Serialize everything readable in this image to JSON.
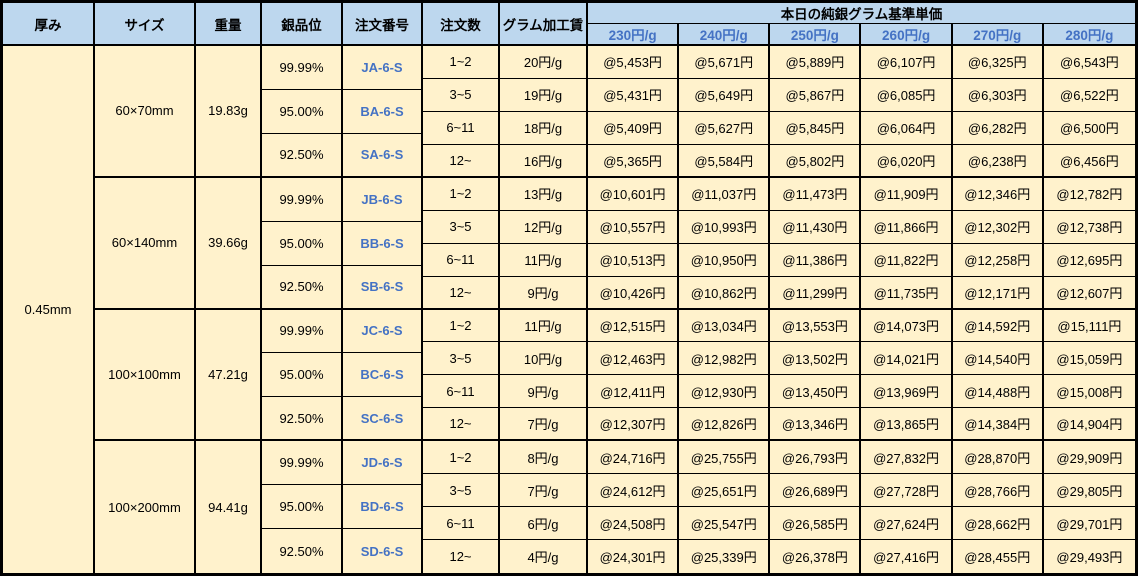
{
  "colors": {
    "header_bg": "#BDD7EE",
    "body_bg": "#FFF2CC",
    "accent_blue": "#4472C4",
    "border": "#000000"
  },
  "table": {
    "headers": {
      "thickness": "厚み",
      "size": "サイズ",
      "weight": "重量",
      "purity": "銀品位",
      "order_no": "注文番号",
      "order_qty": "注文数",
      "fee": "グラム加工賃",
      "price_group": "本日の純銀グラム基準単価"
    },
    "price_columns": [
      "230円/g",
      "240円/g",
      "250円/g",
      "260円/g",
      "270円/g",
      "280円/g"
    ],
    "thickness_value": "0.45mm",
    "groups": [
      {
        "size": "60×70mm",
        "weight": "19.83g",
        "purities": [
          {
            "purity": "99.99%",
            "order_no": "JA-6-S"
          },
          {
            "purity": "95.00%",
            "order_no": "BA-6-S"
          },
          {
            "purity": "92.50%",
            "order_no": "SA-6-S"
          }
        ],
        "rows": [
          {
            "qty": "1~2",
            "fee": "20円/g",
            "prices": [
              "@5,453円",
              "@5,671円",
              "@5,889円",
              "@6,107円",
              "@6,325円",
              "@6,543円"
            ]
          },
          {
            "qty": "3~5",
            "fee": "19円/g",
            "prices": [
              "@5,431円",
              "@5,649円",
              "@5,867円",
              "@6,085円",
              "@6,303円",
              "@6,522円"
            ]
          },
          {
            "qty": "6~11",
            "fee": "18円/g",
            "prices": [
              "@5,409円",
              "@5,627円",
              "@5,845円",
              "@6,064円",
              "@6,282円",
              "@6,500円"
            ]
          },
          {
            "qty": "12~",
            "fee": "16円/g",
            "prices": [
              "@5,365円",
              "@5,584円",
              "@5,802円",
              "@6,020円",
              "@6,238円",
              "@6,456円"
            ]
          }
        ]
      },
      {
        "size": "60×140mm",
        "weight": "39.66g",
        "purities": [
          {
            "purity": "99.99%",
            "order_no": "JB-6-S"
          },
          {
            "purity": "95.00%",
            "order_no": "BB-6-S"
          },
          {
            "purity": "92.50%",
            "order_no": "SB-6-S"
          }
        ],
        "rows": [
          {
            "qty": "1~2",
            "fee": "13円/g",
            "prices": [
              "@10,601円",
              "@11,037円",
              "@11,473円",
              "@11,909円",
              "@12,346円",
              "@12,782円"
            ]
          },
          {
            "qty": "3~5",
            "fee": "12円/g",
            "prices": [
              "@10,557円",
              "@10,993円",
              "@11,430円",
              "@11,866円",
              "@12,302円",
              "@12,738円"
            ]
          },
          {
            "qty": "6~11",
            "fee": "11円/g",
            "prices": [
              "@10,513円",
              "@10,950円",
              "@11,386円",
              "@11,822円",
              "@12,258円",
              "@12,695円"
            ]
          },
          {
            "qty": "12~",
            "fee": "9円/g",
            "prices": [
              "@10,426円",
              "@10,862円",
              "@11,299円",
              "@11,735円",
              "@12,171円",
              "@12,607円"
            ]
          }
        ]
      },
      {
        "size": "100×100mm",
        "weight": "47.21g",
        "purities": [
          {
            "purity": "99.99%",
            "order_no": "JC-6-S"
          },
          {
            "purity": "95.00%",
            "order_no": "BC-6-S"
          },
          {
            "purity": "92.50%",
            "order_no": "SC-6-S"
          }
        ],
        "rows": [
          {
            "qty": "1~2",
            "fee": "11円/g",
            "prices": [
              "@12,515円",
              "@13,034円",
              "@13,553円",
              "@14,073円",
              "@14,592円",
              "@15,111円"
            ]
          },
          {
            "qty": "3~5",
            "fee": "10円/g",
            "prices": [
              "@12,463円",
              "@12,982円",
              "@13,502円",
              "@14,021円",
              "@14,540円",
              "@15,059円"
            ]
          },
          {
            "qty": "6~11",
            "fee": "9円/g",
            "prices": [
              "@12,411円",
              "@12,930円",
              "@13,450円",
              "@13,969円",
              "@14,488円",
              "@15,008円"
            ]
          },
          {
            "qty": "12~",
            "fee": "7円/g",
            "prices": [
              "@12,307円",
              "@12,826円",
              "@13,346円",
              "@13,865円",
              "@14,384円",
              "@14,904円"
            ]
          }
        ]
      },
      {
        "size": "100×200mm",
        "weight": "94.41g",
        "purities": [
          {
            "purity": "99.99%",
            "order_no": "JD-6-S"
          },
          {
            "purity": "95.00%",
            "order_no": "BD-6-S"
          },
          {
            "purity": "92.50%",
            "order_no": "SD-6-S"
          }
        ],
        "rows": [
          {
            "qty": "1~2",
            "fee": "8円/g",
            "prices": [
              "@24,716円",
              "@25,755円",
              "@26,793円",
              "@27,832円",
              "@28,870円",
              "@29,909円"
            ]
          },
          {
            "qty": "3~5",
            "fee": "7円/g",
            "prices": [
              "@24,612円",
              "@25,651円",
              "@26,689円",
              "@27,728円",
              "@28,766円",
              "@29,805円"
            ]
          },
          {
            "qty": "6~11",
            "fee": "6円/g",
            "prices": [
              "@24,508円",
              "@25,547円",
              "@26,585円",
              "@27,624円",
              "@28,662円",
              "@29,701円"
            ]
          },
          {
            "qty": "12~",
            "fee": "4円/g",
            "prices": [
              "@24,301円",
              "@25,339円",
              "@26,378円",
              "@27,416円",
              "@28,455円",
              "@29,493円"
            ]
          }
        ]
      }
    ]
  }
}
